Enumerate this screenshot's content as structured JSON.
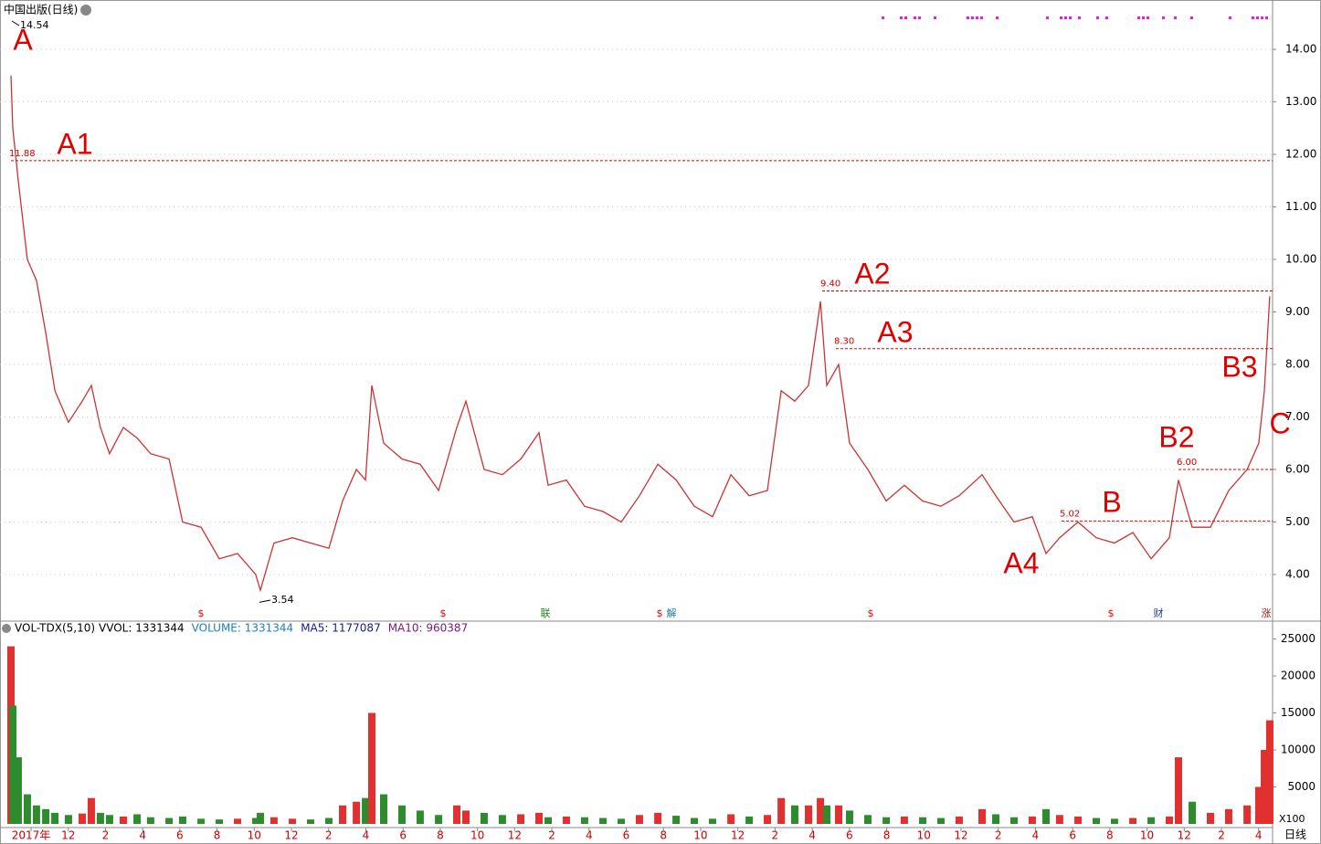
{
  "chart_data": [
    {
      "type": "line",
      "title": "中国出版(日线)",
      "color": "#cc3333",
      "x": [
        8.92,
        9.02,
        9.31,
        9.8,
        10.29,
        10.79,
        11.28,
        12.01,
        12.75,
        13.24,
        13.73,
        14.22,
        14.96,
        15.7,
        16.43,
        17.42,
        18.15,
        19.14,
        20.12,
        21.1,
        22.08,
        22.33,
        23.06,
        24.05,
        25.03,
        26.01,
        26.75,
        27.49,
        27.98,
        28.32,
        28.96,
        29.94,
        30.92,
        31.91,
        32.89,
        33.38,
        34.36,
        35.34,
        36.33,
        37.31,
        37.8,
        38.78,
        39.76,
        40.75,
        41.73,
        42.71,
        43.7,
        44.68,
        45.66,
        46.64,
        47.63,
        48.61,
        49.59,
        50.33,
        51.06,
        51.8,
        52.44,
        52.78,
        53.42,
        54.01,
        54.99,
        55.98,
        56.95,
        57.94,
        58.92,
        59.9,
        61.13,
        61.87,
        62.85,
        63.83,
        64.57,
        65.3,
        66.29,
        67.27,
        68.25,
        69.24,
        70.22,
        71.2,
        71.69,
        72.43,
        73.41,
        74.39,
        75.38,
        76.01,
        76.31,
        76.6
      ],
      "values": [
        13.5,
        12.5,
        11.5,
        10.0,
        9.6,
        8.6,
        7.5,
        6.9,
        7.3,
        7.6,
        6.8,
        6.3,
        6.8,
        6.6,
        6.3,
        6.2,
        5.0,
        4.9,
        4.3,
        4.4,
        4.0,
        3.7,
        4.6,
        4.7,
        4.6,
        4.5,
        5.4,
        6.0,
        5.8,
        7.6,
        6.5,
        6.2,
        6.1,
        5.6,
        6.8,
        7.3,
        6.0,
        5.9,
        6.2,
        6.7,
        5.7,
        5.8,
        5.3,
        5.2,
        5.0,
        5.5,
        6.1,
        5.8,
        5.3,
        5.1,
        5.9,
        5.5,
        5.6,
        7.5,
        7.3,
        7.6,
        9.2,
        7.6,
        8.0,
        6.5,
        6.0,
        5.4,
        5.7,
        5.4,
        5.3,
        5.5,
        5.9,
        5.5,
        5.0,
        5.1,
        4.4,
        4.7,
        5.0,
        4.7,
        4.6,
        4.8,
        4.3,
        4.7,
        5.8,
        4.9,
        4.9,
        5.6,
        6.0,
        6.5,
        7.5,
        9.3
      ],
      "xlim": [
        8.33,
        76.75
      ],
      "ylim": [
        3.46,
        14.94
      ],
      "grid": true,
      "yticks": [
        {
          "value": 4,
          "label": "4.00"
        },
        {
          "value": 5,
          "label": "5.00"
        },
        {
          "value": 6,
          "label": "6.00"
        },
        {
          "value": 7,
          "label": "7.00"
        },
        {
          "value": 8,
          "label": "8.00"
        },
        {
          "value": 9,
          "label": "9.00"
        },
        {
          "value": 10,
          "label": "10.00"
        },
        {
          "value": 11,
          "label": "11.00"
        },
        {
          "value": 12,
          "label": "12.00"
        },
        {
          "value": 13,
          "label": "13.00"
        },
        {
          "value": 14,
          "label": "14.00"
        }
      ],
      "levels": [
        11.88,
        {
          "value": 9.4,
          "label": "9.40"
        },
        {
          "value": 8.3,
          "label": "8.30"
        },
        5.02,
        {
          "value": 6,
          "label": "6.00"
        }
      ],
      "high": 14.54,
      "low": 3.54,
      "annotations": [
        "A",
        "A1",
        "A2",
        "A3",
        "A4",
        "B",
        "B2",
        "B3",
        "C"
      ],
      "events": [
        "$",
        "$",
        "联",
        "$",
        "解",
        "$",
        "$",
        "财",
        "涨"
      ]
    },
    {
      "type": "bar",
      "title": "VOL-TDX(5,10)",
      "color_up": "#e03030",
      "color_down": "#2e8b2e",
      "x": [
        8.92,
        9.02,
        9.31,
        9.8,
        10.29,
        10.79,
        11.28,
        12.01,
        12.75,
        13.24,
        13.73,
        14.22,
        14.96,
        15.7,
        16.43,
        17.42,
        18.15,
        19.14,
        20.12,
        21.1,
        22.08,
        22.33,
        23.06,
        24.05,
        25.03,
        26.01,
        26.75,
        27.49,
        27.98,
        28.32,
        28.96,
        29.94,
        30.92,
        31.91,
        32.89,
        33.38,
        34.36,
        35.34,
        36.33,
        37.31,
        37.8,
        38.78,
        39.76,
        40.75,
        41.73,
        42.71,
        43.7,
        44.68,
        45.66,
        46.64,
        47.63,
        48.61,
        49.59,
        50.33,
        51.06,
        51.8,
        52.44,
        52.78,
        53.42,
        54.01,
        54.99,
        55.98,
        56.95,
        57.94,
        58.92,
        59.9,
        61.13,
        61.87,
        62.85,
        63.83,
        64.57,
        65.3,
        66.29,
        67.27,
        68.25,
        69.24,
        70.22,
        71.2,
        71.69,
        72.43,
        73.41,
        74.39,
        75.38,
        76.01,
        76.31,
        76.6
      ],
      "values": [
        24000,
        16000,
        9000,
        4000,
        2500,
        2000,
        1500,
        1200,
        1400,
        3500,
        1500,
        1200,
        1000,
        1300,
        900,
        800,
        1000,
        700,
        600,
        700,
        800,
        1500,
        900,
        700,
        600,
        800,
        2500,
        3000,
        3500,
        15000,
        4000,
        2500,
        1800,
        1200,
        2500,
        1800,
        1500,
        1200,
        1300,
        1500,
        900,
        1000,
        900,
        800,
        700,
        1200,
        1500,
        1100,
        800,
        700,
        1300,
        1000,
        1200,
        3500,
        2500,
        2500,
        3500,
        2500,
        2500,
        1800,
        1200,
        900,
        1000,
        900,
        800,
        1000,
        2000,
        1300,
        900,
        1000,
        2000,
        1200,
        1000,
        800,
        700,
        800,
        900,
        1000,
        9000,
        3000,
        1500,
        2000,
        2500,
        5000,
        10000,
        14000
      ],
      "xlim": [
        8.33,
        76.75
      ],
      "ylim": [
        0,
        26170
      ],
      "yticks": [
        5000,
        10000,
        15000,
        20000,
        25000
      ],
      "xticks": [
        {
          "value": 10,
          "label": "2017年"
        },
        12,
        {
          "value": 14,
          "label": "2"
        },
        {
          "value": 16,
          "label": "4"
        },
        {
          "value": 18,
          "label": "6"
        },
        {
          "value": 20,
          "label": "8"
        },
        {
          "value": 22,
          "label": "10"
        },
        {
          "value": 24,
          "label": "12"
        },
        {
          "value": 26,
          "label": "2"
        },
        {
          "value": 28,
          "label": "4"
        },
        {
          "value": 30,
          "label": "6"
        },
        {
          "value": 32,
          "label": "8"
        },
        {
          "value": 34,
          "label": "10"
        },
        {
          "value": 36,
          "label": "12"
        },
        {
          "value": 38,
          "label": "2"
        },
        {
          "value": 40,
          "label": "4"
        },
        {
          "value": 42,
          "label": "6"
        },
        {
          "value": 44,
          "label": "8"
        },
        {
          "value": 46,
          "label": "10"
        },
        {
          "value": 48,
          "label": "12"
        },
        {
          "value": 50,
          "label": "2"
        },
        {
          "value": 52,
          "label": "4"
        },
        {
          "value": 54,
          "label": "6"
        },
        {
          "value": 56,
          "label": "8"
        },
        {
          "value": 58,
          "label": "10"
        },
        {
          "value": 60,
          "label": "12"
        },
        {
          "value": 62,
          "label": "2"
        },
        {
          "value": 64,
          "label": "4"
        },
        {
          "value": 66,
          "label": "6"
        },
        {
          "value": 68,
          "label": "8"
        },
        {
          "value": 70,
          "label": "10"
        },
        {
          "value": 72,
          "label": "12"
        },
        {
          "value": 74,
          "label": "2"
        },
        {
          "value": 76,
          "label": "4"
        }
      ],
      "readouts": [
        {
          "text": "VVOL: 1331344",
          "color": "#000000"
        },
        {
          "text": "VOLUME: 1331344",
          "color": "#1e7fb8"
        },
        {
          "text": "MA5: 1177087",
          "color": "#1a1a8c"
        },
        {
          "text": "MA10: 960387",
          "color": "#7a1a7a"
        }
      ],
      "unit_label": "X100"
    }
  ],
  "period_label": "日线"
}
